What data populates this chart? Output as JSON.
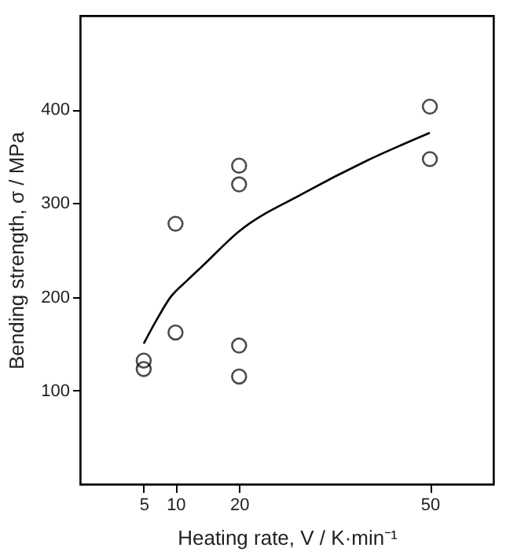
{
  "chart_data": {
    "type": "scatter",
    "xlabel": "Heating rate, V / K·min⁻¹",
    "ylabel": "Bending strength, σ / MPa",
    "xlim": [
      -5,
      60
    ],
    "xticks": [
      5,
      10,
      20,
      50
    ],
    "ylim": [
      0,
      500
    ],
    "yticks": [
      100,
      200,
      300,
      400
    ],
    "grid": false,
    "marker": "circle",
    "series": [
      {
        "color": "#000000",
        "x": [
          5,
          5,
          10,
          10,
          20,
          20,
          20,
          20,
          50,
          50
        ],
        "values": [
          132,
          123,
          278,
          162,
          340,
          320,
          148,
          115,
          403,
          347
        ]
      },
      {
        "type": "line",
        "color": "#000000",
        "line_style": "solid",
        "marker": "none",
        "x": [
          5,
          6.75,
          9.25,
          11.75,
          14.25,
          20,
          30,
          40,
          50
        ],
        "values": [
          150,
          172,
          200,
          217,
          233,
          270,
          310,
          345,
          375
        ]
      }
    ]
  }
}
